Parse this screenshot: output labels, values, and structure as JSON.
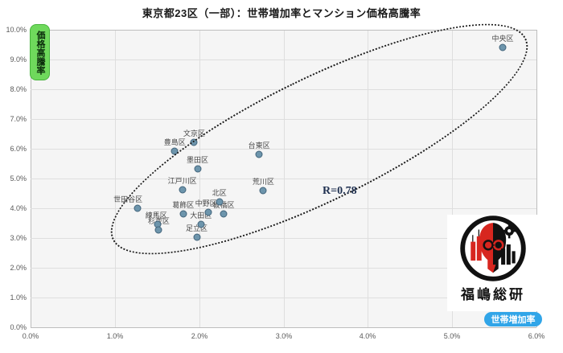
{
  "title": "東京都23区（一部）：世帯増加率とマンション価格高騰率",
  "branding": {
    "logo_text": "福嶋総研"
  },
  "colors": {
    "ylabel_bg": "#6fd95c",
    "ylabel_border": "#49b53d",
    "xlabel_bg": "#31a5e8",
    "point_fill": "#6d95ac",
    "point_border": "#41637a",
    "logo_red": "#d7261f",
    "logo_black": "#111111"
  },
  "chart_data": {
    "type": "scatter",
    "title": "東京都23区（一部）：世帯増加率とマンション価格高騰率",
    "xlabel": "世帯増加率",
    "ylabel": "価格高騰率",
    "xlim": [
      0,
      6
    ],
    "ylim": [
      0,
      10
    ],
    "grid": true,
    "annotation": "R=0.78",
    "x_ticks": [
      "0.0%",
      "1.0%",
      "2.0%",
      "3.0%",
      "4.0%",
      "5.0%",
      "6.0%"
    ],
    "y_ticks": [
      "10.0%",
      "9.0%",
      "8.0%",
      "7.0%",
      "6.0%",
      "5.0%",
      "4.0%",
      "3.0%",
      "2.0%",
      "1.0%",
      "0.0%"
    ],
    "series": [
      {
        "name": "東京23区（一部）",
        "points": [
          {
            "name": "中央区",
            "x": 5.6,
            "y": 9.4
          },
          {
            "name": "文京区",
            "x": 1.94,
            "y": 6.22
          },
          {
            "name": "豊島区",
            "x": 1.71,
            "y": 5.93
          },
          {
            "name": "台東区",
            "x": 2.71,
            "y": 5.81
          },
          {
            "name": "墨田区",
            "x": 1.98,
            "y": 5.32
          },
          {
            "name": "江戸川区",
            "x": 1.8,
            "y": 4.63
          },
          {
            "name": "荒川区",
            "x": 2.76,
            "y": 4.6
          },
          {
            "name": "北区",
            "x": 2.24,
            "y": 4.22
          },
          {
            "name": "世田谷区",
            "x": 1.27,
            "y": 4.0,
            "ldx": -12
          },
          {
            "name": "中野区",
            "x": 2.11,
            "y": 3.86,
            "ldx": -3
          },
          {
            "name": "板橋区",
            "x": 2.29,
            "y": 3.82
          },
          {
            "name": "葛飾区",
            "x": 1.81,
            "y": 3.8
          },
          {
            "name": "大田区",
            "x": 2.02,
            "y": 3.47
          },
          {
            "name": "練馬区",
            "x": 1.51,
            "y": 3.47,
            "ldx": -2
          },
          {
            "name": "杉並区",
            "x": 1.52,
            "y": 3.26
          },
          {
            "name": "足立区",
            "x": 1.97,
            "y": 3.04
          }
        ]
      }
    ]
  }
}
